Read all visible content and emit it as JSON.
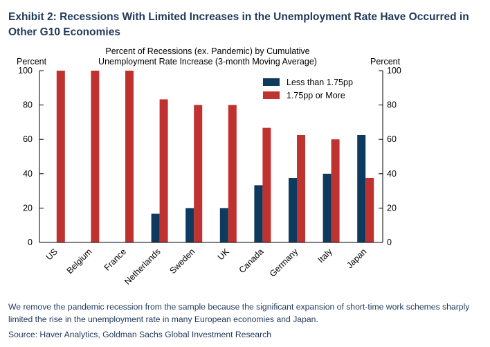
{
  "exhibit_title": "Exhibit 2: Recessions With Limited Increases in the Unemployment Rate Have Occurred in Other G10 Economies",
  "footnote": "We remove the pandemic recession from the sample because the significant expansion of short-time work schemes sharply limited the rise in the unemployment rate in many European economies and Japan.",
  "source": "Source: Haver Analytics, Goldman Sachs Global Investment Research",
  "colors": {
    "less": "#0e3a5e",
    "more": "#c0322f",
    "title": "#1f3a5a"
  },
  "chart_data": {
    "type": "bar",
    "title": "Percent of Recessions (ex. Pandemic) by Cumulative",
    "subtitle": "Unemployment Rate Increase (3-month Moving Average)",
    "ylabel_left": "Percent",
    "ylabel_right": "Percent",
    "ylim": [
      0,
      100
    ],
    "yticks": [
      "0",
      "20",
      "40",
      "60",
      "80",
      "100"
    ],
    "categories": [
      "US",
      "Belgium",
      "France",
      "Netherlands",
      "Sweden",
      "UK",
      "Canada",
      "Germany",
      "Italy",
      "Japan"
    ],
    "series": [
      {
        "name": "Less than 1.75pp",
        "values": [
          0,
          0,
          0,
          16.7,
          20,
          20,
          33.3,
          37.5,
          40,
          62.5
        ]
      },
      {
        "name": "1.75pp or More",
        "values": [
          100,
          100,
          100,
          83.3,
          80,
          80,
          66.7,
          62.5,
          60,
          37.5
        ]
      }
    ],
    "legend_position": "top-right",
    "grid": false
  }
}
